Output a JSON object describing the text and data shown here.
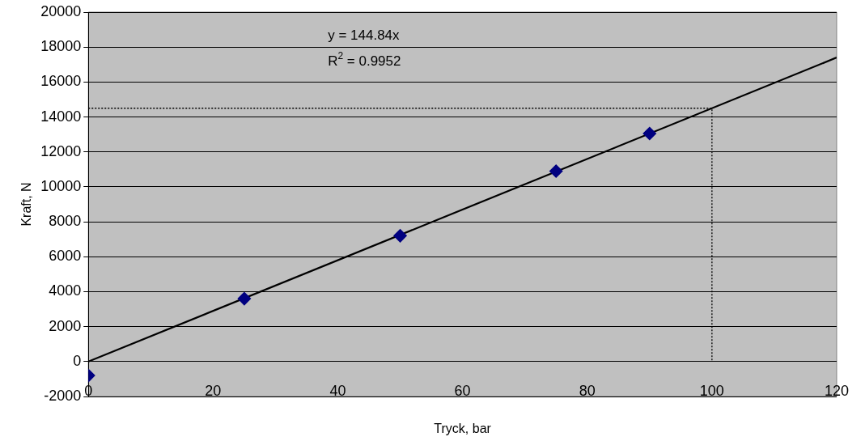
{
  "chart_data": {
    "type": "scatter",
    "xlabel": "Tryck, bar",
    "ylabel": "Kraft, N",
    "xlim": [
      0,
      120
    ],
    "xticks": [
      0,
      20,
      40,
      60,
      80,
      100,
      120
    ],
    "ylim": [
      -2000,
      20000
    ],
    "yticks": [
      -2000,
      0,
      2000,
      4000,
      6000,
      8000,
      10000,
      12000,
      14000,
      16000,
      18000,
      20000
    ],
    "grid": "y",
    "annotations": [
      "y = 144.84x",
      "R$^{2}$ = 0.9952"
    ],
    "series": [
      {
        "type": "scatter",
        "color": "#000080",
        "marker": "diamond",
        "x": [
          0,
          25,
          50,
          75,
          90
        ],
        "values": [
          -800,
          3600,
          7200,
          10900,
          13050
        ]
      },
      {
        "type": "line",
        "color": "#000000",
        "marker": "none",
        "line_style": "solid",
        "x": [
          0,
          120
        ],
        "values": [
          0,
          17400
        ]
      },
      {
        "type": "line",
        "color": "#000000",
        "marker": "none",
        "line_style": "dotted",
        "x": [
          0,
          100,
          100
        ],
        "values": [
          14500,
          14500,
          0
        ]
      }
    ]
  }
}
